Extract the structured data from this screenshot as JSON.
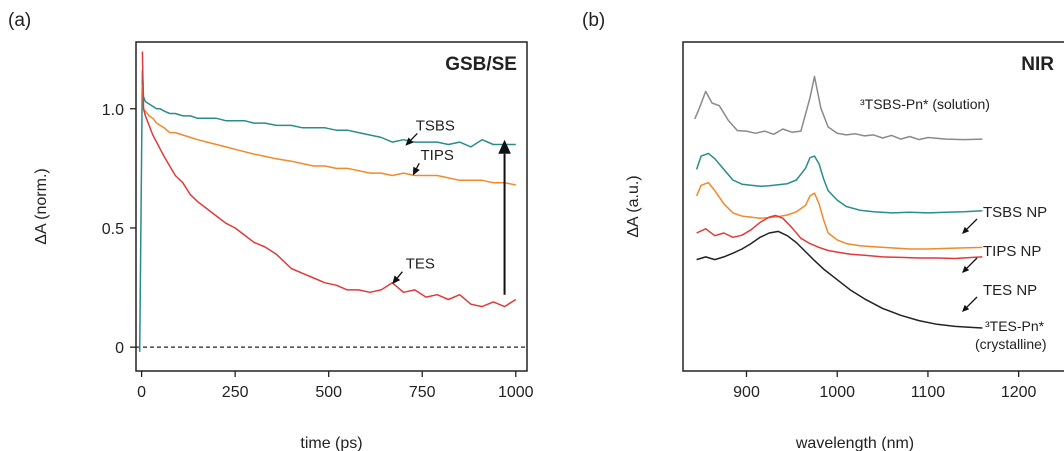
{
  "chart_data": [
    {
      "panel": "(a)",
      "type": "line",
      "title": "GSB/SE",
      "xlabel": "time (ps)",
      "ylabel": "ΔA (norm.)",
      "xlim": [
        -15,
        1030
      ],
      "ylim": [
        -0.1,
        1.28
      ],
      "xticks": [
        0,
        250,
        500,
        750,
        1000
      ],
      "yticks": [
        0,
        0.5,
        1.0
      ],
      "ytick_labels": [
        "0",
        "0.5",
        "1.0"
      ],
      "grid": false,
      "baseline": 0,
      "annotations": [
        {
          "text": "TSBS",
          "label_x": 785,
          "label_y": 0.93,
          "arrow_to": [
            705,
            0.845
          ]
        },
        {
          "text": "TIPS",
          "label_x": 790,
          "label_y": 0.805,
          "arrow_to": [
            725,
            0.72
          ]
        },
        {
          "text": "TES",
          "label_x": 745,
          "label_y": 0.35,
          "arrow_to": [
            670,
            0.265
          ]
        },
        {
          "text": "",
          "type": "arrow",
          "from": [
            970,
            0.22
          ],
          "to": [
            970,
            0.87
          ]
        }
      ],
      "series": [
        {
          "name": "TSBS",
          "color": "#2a8c8c",
          "x": [
            -5,
            2,
            5,
            10,
            20,
            30,
            40,
            50,
            60,
            75,
            90,
            110,
            130,
            150,
            175,
            200,
            225,
            250,
            275,
            300,
            330,
            360,
            400,
            430,
            460,
            490,
            520,
            550,
            580,
            610,
            640,
            670,
            700,
            730,
            760,
            790,
            820,
            850,
            880,
            910,
            940,
            970,
            1000
          ],
          "y": [
            -0.02,
            1.16,
            1.05,
            1.03,
            1.02,
            1.01,
            1.0,
            1.0,
            0.99,
            0.98,
            0.98,
            0.97,
            0.97,
            0.96,
            0.96,
            0.96,
            0.95,
            0.95,
            0.95,
            0.94,
            0.94,
            0.93,
            0.93,
            0.92,
            0.92,
            0.92,
            0.91,
            0.91,
            0.9,
            0.89,
            0.88,
            0.86,
            0.87,
            0.86,
            0.86,
            0.86,
            0.85,
            0.86,
            0.84,
            0.87,
            0.85,
            0.85,
            0.85
          ]
        },
        {
          "name": "TIPS",
          "color": "#f08a2b",
          "x": [
            2,
            5,
            10,
            20,
            30,
            40,
            50,
            60,
            75,
            90,
            110,
            130,
            150,
            175,
            200,
            225,
            250,
            275,
            300,
            330,
            360,
            400,
            430,
            460,
            490,
            520,
            550,
            580,
            610,
            640,
            670,
            700,
            730,
            760,
            790,
            820,
            850,
            880,
            910,
            940,
            970,
            1000
          ],
          "y": [
            1.1,
            1.0,
            0.99,
            0.97,
            0.96,
            0.94,
            0.93,
            0.92,
            0.9,
            0.9,
            0.89,
            0.88,
            0.87,
            0.86,
            0.85,
            0.84,
            0.83,
            0.82,
            0.81,
            0.8,
            0.79,
            0.78,
            0.77,
            0.76,
            0.76,
            0.75,
            0.75,
            0.74,
            0.73,
            0.73,
            0.72,
            0.73,
            0.72,
            0.72,
            0.72,
            0.71,
            0.7,
            0.7,
            0.7,
            0.69,
            0.69,
            0.68
          ]
        },
        {
          "name": "TES",
          "color": "#de3b3b",
          "x": [
            2,
            5,
            10,
            20,
            30,
            40,
            50,
            60,
            75,
            90,
            110,
            130,
            150,
            175,
            200,
            225,
            250,
            275,
            300,
            330,
            360,
            400,
            430,
            460,
            490,
            520,
            550,
            580,
            610,
            640,
            670,
            700,
            730,
            760,
            790,
            820,
            850,
            880,
            910,
            940,
            970,
            1000
          ],
          "y": [
            1.24,
            1.0,
            0.97,
            0.93,
            0.89,
            0.86,
            0.83,
            0.8,
            0.76,
            0.72,
            0.69,
            0.64,
            0.61,
            0.58,
            0.55,
            0.52,
            0.5,
            0.47,
            0.44,
            0.42,
            0.39,
            0.33,
            0.31,
            0.29,
            0.27,
            0.26,
            0.24,
            0.24,
            0.23,
            0.24,
            0.27,
            0.23,
            0.24,
            0.21,
            0.22,
            0.2,
            0.22,
            0.18,
            0.17,
            0.19,
            0.17,
            0.2
          ]
        }
      ]
    },
    {
      "panel": "(b)",
      "type": "line",
      "title": "NIR",
      "xlabel": "wavelength (nm)",
      "ylabel": "ΔA (a.u.)",
      "xlim": [
        830,
        1250
      ],
      "ylim": [
        0,
        6.2
      ],
      "xticks": [
        900,
        1000,
        1100,
        1200
      ],
      "yticks": [],
      "grid": false,
      "series_labels": [
        "³TSBS-Pn* (solution)",
        "TSBS NP",
        "TIPS NP",
        "TES NP",
        "³TES-Pn*",
        "(crystalline)"
      ],
      "series": [
        {
          "name": "³TSBS-Pn* (solution)",
          "color": "#8a8a8a",
          "x": [
            843,
            848,
            855,
            862,
            870,
            880,
            890,
            900,
            910,
            920,
            930,
            940,
            950,
            960,
            970,
            975,
            982,
            990,
            1000,
            1010,
            1020,
            1030,
            1040,
            1050,
            1060,
            1070,
            1080,
            1090,
            1100,
            1120,
            1140,
            1160
          ],
          "y": [
            4.75,
            4.95,
            5.27,
            5.05,
            5.0,
            4.72,
            4.53,
            4.52,
            4.48,
            4.52,
            4.46,
            4.56,
            4.5,
            4.52,
            5.15,
            5.55,
            4.95,
            4.6,
            4.48,
            4.45,
            4.47,
            4.43,
            4.45,
            4.39,
            4.44,
            4.37,
            4.42,
            4.36,
            4.4,
            4.37,
            4.36,
            4.37
          ]
        },
        {
          "name": "TSBS NP",
          "color": "#2a8c8c",
          "x": [
            845,
            850,
            858,
            865,
            875,
            885,
            895,
            905,
            915,
            925,
            935,
            945,
            955,
            965,
            970,
            975,
            980,
            985,
            990,
            1000,
            1010,
            1025,
            1040,
            1060,
            1080,
            1100,
            1120,
            1140,
            1160
          ],
          "y": [
            3.8,
            4.05,
            4.1,
            4.0,
            3.8,
            3.6,
            3.52,
            3.5,
            3.48,
            3.49,
            3.51,
            3.53,
            3.6,
            3.82,
            4.02,
            4.05,
            3.9,
            3.62,
            3.4,
            3.22,
            3.1,
            3.03,
            3.0,
            2.98,
            2.99,
            2.98,
            2.99,
            3.0,
            3.02
          ]
        },
        {
          "name": "TIPS NP",
          "color": "#f08a2b",
          "x": [
            845,
            850,
            858,
            865,
            875,
            885,
            895,
            905,
            915,
            925,
            935,
            945,
            955,
            965,
            970,
            975,
            980,
            985,
            990,
            1000,
            1010,
            1025,
            1040,
            1060,
            1080,
            1100,
            1120,
            1140,
            1160
          ],
          "y": [
            3.3,
            3.5,
            3.55,
            3.4,
            3.15,
            2.98,
            2.92,
            2.9,
            2.88,
            2.89,
            2.91,
            2.94,
            3.0,
            3.12,
            3.3,
            3.35,
            3.15,
            2.85,
            2.6,
            2.47,
            2.4,
            2.36,
            2.34,
            2.32,
            2.3,
            2.3,
            2.31,
            2.32,
            2.33
          ]
        },
        {
          "name": "TES NP",
          "color": "#de3b3b",
          "x": [
            845,
            855,
            865,
            875,
            885,
            895,
            905,
            915,
            925,
            932,
            940,
            950,
            960,
            970,
            980,
            990,
            1000,
            1015,
            1030,
            1050,
            1070,
            1090,
            1110,
            1130,
            1150,
            1160
          ],
          "y": [
            2.6,
            2.68,
            2.55,
            2.6,
            2.52,
            2.56,
            2.66,
            2.8,
            2.9,
            2.93,
            2.88,
            2.7,
            2.5,
            2.4,
            2.33,
            2.27,
            2.24,
            2.2,
            2.18,
            2.15,
            2.14,
            2.13,
            2.13,
            2.12,
            2.14,
            2.15
          ]
        },
        {
          "name": "³TES-Pn* (crystalline)",
          "color": "#222222",
          "x": [
            845,
            855,
            865,
            875,
            885,
            895,
            905,
            915,
            925,
            935,
            945,
            955,
            965,
            975,
            985,
            1000,
            1015,
            1030,
            1050,
            1070,
            1090,
            1110,
            1130,
            1150,
            1160
          ],
          "y": [
            2.1,
            2.15,
            2.1,
            2.15,
            2.22,
            2.3,
            2.4,
            2.52,
            2.6,
            2.63,
            2.55,
            2.42,
            2.25,
            2.08,
            1.92,
            1.72,
            1.52,
            1.36,
            1.18,
            1.05,
            0.95,
            0.88,
            0.84,
            0.82,
            0.81
          ]
        }
      ]
    }
  ]
}
